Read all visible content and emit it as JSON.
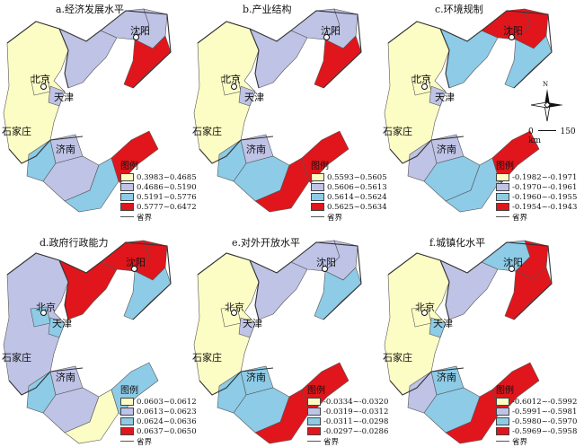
{
  "colors": {
    "c1": "#fcfdc4",
    "c2": "#bfc3e6",
    "c3": "#8dcbe7",
    "c4": "#e0161c",
    "boundary": "#555555",
    "sea": "#ffffff"
  },
  "cities": {
    "beijing": "北京",
    "tianjin": "天津",
    "shijiazhuang": "石家庄",
    "jinan": "济南",
    "shenyang": "沈阳"
  },
  "legend_title": "图例",
  "boundary_label": "省界",
  "compass_letter": "N",
  "scale": {
    "zero": "0",
    "end": "150 km"
  },
  "panels": [
    {
      "title": "a.经济发展水平",
      "legend": [
        "0.3983~0.4685",
        "0.4686~0.5190",
        "0.5191~0.5776",
        "0.5777~0.6472"
      ],
      "levels": {
        "hebei": 1,
        "bj": 1,
        "tj": 2,
        "jinan_reg": 2,
        "liaoning_w": 2,
        "liaoning_n": 2,
        "liaoning_e": 2,
        "liaoning_s": 4,
        "sd_w": 3,
        "sd_c": 2,
        "sd_s": 3,
        "sd_e": 4
      }
    },
    {
      "title": "b.产业结构",
      "legend": [
        "0.5593~0.5605",
        "0.5606~0.5613",
        "0.5614~0.5624",
        "0.5625~0.5634"
      ],
      "levels": {
        "hebei": 1,
        "bj": 1,
        "tj": 2,
        "jinan_reg": 2,
        "liaoning_w": 2,
        "liaoning_n": 2,
        "liaoning_e": 2,
        "liaoning_s": 4,
        "sd_w": 3,
        "sd_c": 3,
        "sd_s": 4,
        "sd_e": 4
      }
    },
    {
      "title": "c.环境规制",
      "legend": [
        "-0.1982~-0.1971",
        "-0.1970~-0.1961",
        "-0.1960~-0.1955",
        "-0.1954~-0.1943"
      ],
      "levels": {
        "hebei": 1,
        "bj": 1,
        "tj": 2,
        "jinan_reg": 2,
        "liaoning_w": 3,
        "liaoning_n": 4,
        "liaoning_e": 4,
        "liaoning_s": 3,
        "sd_w": 2,
        "sd_c": 3,
        "sd_s": 3,
        "sd_e": 4
      }
    },
    {
      "title": "d.政府行政能力",
      "legend": [
        "0.0603~0.0612",
        "0.0613~0.0623",
        "0.0624~0.0636",
        "0.0637~0.0650"
      ],
      "levels": {
        "hebei": 2,
        "bj": 3,
        "tj": 3,
        "jinan_reg": 2,
        "liaoning_w": 4,
        "liaoning_n": 4,
        "liaoning_e": 4,
        "liaoning_s": 3,
        "sd_w": 3,
        "sd_c": 2,
        "sd_s": 1,
        "sd_e": 3
      }
    },
    {
      "title": "e.对外开放水平",
      "legend": [
        "-0.0334~-0.0320",
        "-0.0319~-0.0312",
        "-0.0311~-0.0298",
        "-0.0297~-0.0286"
      ],
      "levels": {
        "hebei": 1,
        "bj": 1,
        "tj": 2,
        "jinan_reg": 3,
        "liaoning_w": 2,
        "liaoning_n": 2,
        "liaoning_e": 2,
        "liaoning_s": 3,
        "sd_w": 3,
        "sd_c": 3,
        "sd_s": 4,
        "sd_e": 4
      }
    },
    {
      "title": "f.城镇化水平",
      "legend": [
        "-0.6012~-0.5992",
        "-0.5991~-0.5981",
        "-0.5980~-0.5970",
        "-0.5969~-0.5958"
      ],
      "levels": {
        "hebei": 1,
        "bj": 1,
        "tj": 3,
        "jinan_reg": 3,
        "liaoning_w": 2,
        "liaoning_n": 3,
        "liaoning_e": 4,
        "liaoning_s": 4,
        "sd_w": 2,
        "sd_c": 3,
        "sd_s": 4,
        "sd_e": 4
      }
    }
  ]
}
